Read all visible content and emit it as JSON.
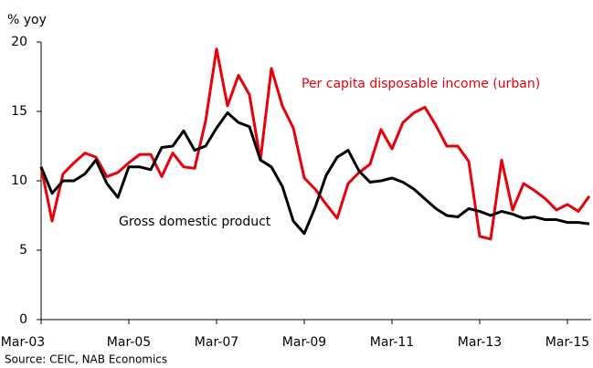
{
  "chart_data": {
    "type": "line",
    "y_axis_label": "% yoy",
    "source": "Source: CEIC, NAB Economics",
    "categories": [
      "Mar-03",
      null,
      null,
      null,
      null,
      null,
      null,
      null,
      "Mar-05",
      null,
      null,
      null,
      null,
      null,
      null,
      null,
      "Mar-07",
      null,
      null,
      null,
      null,
      null,
      null,
      null,
      "Mar-09",
      null,
      null,
      null,
      null,
      null,
      null,
      null,
      "Mar-11",
      null,
      null,
      null,
      null,
      null,
      null,
      null,
      "Mar-13",
      null,
      null,
      null,
      null,
      null,
      null,
      null,
      "Mar-15",
      null,
      null
    ],
    "series": [
      {
        "name": "Per capita disposable income (urban)",
        "color": "#e8000b",
        "values": [
          11,
          7.1,
          10.5,
          11.3,
          12.0,
          11.7,
          10.3,
          10.6,
          11.3,
          11.9,
          11.9,
          10.3,
          12.0,
          11.0,
          10.9,
          14.3,
          19.5,
          15.4,
          17.6,
          16.2,
          11.5,
          18.1,
          15.4,
          13.8,
          10.2,
          9.4,
          8.3,
          7.3,
          9.8,
          10.6,
          11.2,
          13.7,
          12.3,
          14.2,
          14.9,
          15.3,
          14.0,
          12.5,
          12.5,
          11.4,
          6.0,
          5.8,
          11.5,
          7.9,
          9.8,
          9.3,
          8.7,
          7.9,
          8.3,
          7.8,
          8.9
        ]
      },
      {
        "name": "Gross domestic product",
        "color": "#000000",
        "values": [
          11,
          9.1,
          10,
          10,
          10.5,
          11.5,
          9.8,
          8.8,
          11,
          11,
          10.8,
          12.4,
          12.5,
          13.6,
          12.2,
          12.5,
          13.8,
          14.9,
          14.2,
          13.9,
          11.5,
          11.0,
          9.6,
          7.1,
          6.2,
          8.1,
          10.4,
          11.7,
          12.2,
          10.7,
          9.9,
          10.0,
          10.2,
          9.9,
          9.4,
          8.7,
          8.0,
          7.5,
          7.4,
          8.0,
          7.8,
          7.5,
          7.8,
          7.6,
          7.3,
          7.4,
          7.2,
          7.2,
          7.0,
          7.0,
          6.9
        ]
      }
    ],
    "ylim": [
      0,
      20
    ],
    "yticks": [
      0,
      5,
      10,
      15,
      20
    ],
    "grid": false
  }
}
